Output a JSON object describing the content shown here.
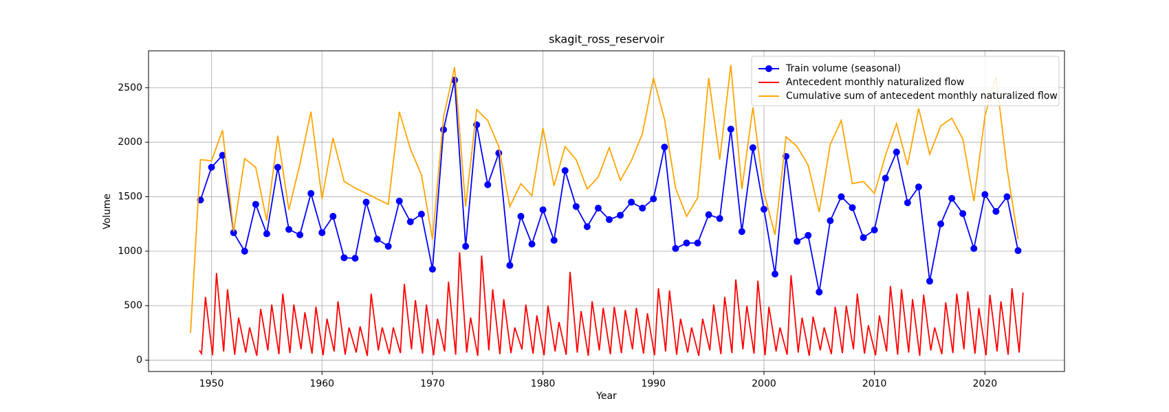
{
  "chart_data": {
    "type": "line",
    "title": "skagit_ross_reservoir",
    "xlabel": "Year",
    "ylabel": "Volume",
    "xlim": [
      1944.3,
      2027.2
    ],
    "ylim": [
      -104,
      2839
    ],
    "xticks": [
      1950,
      1960,
      1970,
      1980,
      1990,
      2000,
      2010,
      2020
    ],
    "yticks": [
      0,
      500,
      1000,
      1500,
      2000,
      2500
    ],
    "grid": true,
    "legend": "upper right",
    "series": [
      {
        "name": "Train volume (seasonal)",
        "color": "#0000ff",
        "marker": "o",
        "x": [
          1949,
          1950,
          1951,
          1952,
          1953,
          1954,
          1955,
          1956,
          1957,
          1958,
          1959,
          1960,
          1961,
          1962,
          1963,
          1964,
          1965,
          1966,
          1967,
          1968,
          1969,
          1970,
          1971,
          1972,
          1973,
          1974,
          1975,
          1976,
          1977,
          1978,
          1979,
          1980,
          1981,
          1982,
          1983,
          1984,
          1985,
          1986,
          1987,
          1988,
          1989,
          1990,
          1991,
          1992,
          1993,
          1994,
          1995,
          1996,
          1997,
          1998,
          1999,
          2000,
          2001,
          2002,
          2003,
          2004,
          2005,
          2006,
          2007,
          2008,
          2009,
          2010,
          2011,
          2012,
          2013,
          2014,
          2015,
          2016,
          2017,
          2018,
          2019,
          2020,
          2021,
          2022,
          2023
        ],
        "values": [
          1470,
          1770,
          1880,
          1170,
          1000,
          1430,
          1160,
          1770,
          1200,
          1150,
          1530,
          1170,
          1320,
          940,
          935,
          1450,
          1110,
          1045,
          1460,
          1270,
          1340,
          835,
          2115,
          2570,
          1045,
          2160,
          1610,
          1900,
          870,
          1320,
          1065,
          1380,
          1100,
          1740,
          1410,
          1225,
          1395,
          1290,
          1330,
          1450,
          1395,
          1480,
          1955,
          1025,
          1075,
          1075,
          1335,
          1300,
          2120,
          1180,
          1950,
          1385,
          790,
          1870,
          1090,
          1145,
          625,
          1280,
          1500,
          1400,
          1125,
          1195,
          1670,
          1910,
          1445,
          1590,
          725,
          1250,
          1485,
          1345,
          1025,
          1520,
          1365,
          1500,
          1005
        ]
      },
      {
        "name": "Antecedent monthly naturalized flow",
        "color": "#ff0000",
        "x": [
          1948.9,
          1949.1,
          1949.45,
          1950.1,
          1950.45,
          1951.1,
          1951.45,
          1952.1,
          1952.45,
          1953.1,
          1953.45,
          1954.1,
          1954.45,
          1955.1,
          1955.45,
          1956.1,
          1956.45,
          1957.1,
          1957.45,
          1958.1,
          1958.45,
          1959.1,
          1959.45,
          1960.1,
          1960.45,
          1961.1,
          1961.45,
          1962.1,
          1962.45,
          1963.1,
          1963.45,
          1964.1,
          1964.45,
          1965.1,
          1965.45,
          1966.1,
          1966.45,
          1967.1,
          1967.45,
          1968.1,
          1968.45,
          1969.1,
          1969.45,
          1970.1,
          1970.45,
          1971.1,
          1971.45,
          1972.1,
          1972.45,
          1973.1,
          1973.45,
          1974.1,
          1974.45,
          1975.1,
          1975.45,
          1976.1,
          1976.45,
          1977.1,
          1977.45,
          1978.1,
          1978.45,
          1979.1,
          1979.45,
          1980.1,
          1980.45,
          1981.1,
          1981.45,
          1982.1,
          1982.45,
          1983.1,
          1983.45,
          1984.1,
          1984.45,
          1985.1,
          1985.45,
          1986.1,
          1986.45,
          1987.1,
          1987.45,
          1988.1,
          1988.45,
          1989.1,
          1989.45,
          1990.1,
          1990.45,
          1991.1,
          1991.45,
          1992.1,
          1992.45,
          1993.1,
          1993.45,
          1994.1,
          1994.45,
          1995.1,
          1995.45,
          1996.1,
          1996.45,
          1997.1,
          1997.45,
          1998.1,
          1998.45,
          1999.1,
          1999.45,
          2000.1,
          2000.45,
          2001.1,
          2001.45,
          2002.1,
          2002.45,
          2003.1,
          2003.45,
          2004.1,
          2004.45,
          2005.1,
          2005.45,
          2006.1,
          2006.45,
          2007.1,
          2007.45,
          2008.1,
          2008.45,
          2009.1,
          2009.45,
          2010.1,
          2010.45,
          2011.1,
          2011.45,
          2012.1,
          2012.45,
          2013.1,
          2013.45,
          2014.1,
          2014.45,
          2015.1,
          2015.45,
          2016.1,
          2016.45,
          2017.1,
          2017.45,
          2018.1,
          2018.45,
          2019.1,
          2019.45,
          2020.1,
          2020.45,
          2021.1,
          2021.45,
          2022.1,
          2022.45,
          2023.1,
          2023.45
        ],
        "values": [
          90,
          60,
          580,
          45,
          800,
          80,
          650,
          50,
          390,
          70,
          300,
          40,
          470,
          90,
          510,
          55,
          610,
          65,
          510,
          100,
          440,
          60,
          490,
          45,
          380,
          80,
          540,
          50,
          300,
          70,
          310,
          40,
          610,
          90,
          300,
          55,
          300,
          65,
          700,
          100,
          550,
          60,
          510,
          45,
          380,
          80,
          720,
          50,
          990,
          70,
          390,
          40,
          960,
          90,
          650,
          55,
          560,
          65,
          300,
          100,
          510,
          60,
          410,
          45,
          500,
          80,
          350,
          50,
          810,
          70,
          450,
          40,
          540,
          90,
          480,
          55,
          490,
          65,
          460,
          100,
          480,
          60,
          430,
          45,
          660,
          80,
          640,
          50,
          380,
          70,
          300,
          40,
          380,
          90,
          510,
          55,
          580,
          65,
          740,
          100,
          500,
          60,
          730,
          45,
          490,
          80,
          300,
          50,
          780,
          70,
          390,
          40,
          400,
          90,
          300,
          55,
          490,
          65,
          500,
          100,
          610,
          60,
          320,
          45,
          410,
          80,
          680,
          50,
          650,
          70,
          560,
          40,
          600,
          90,
          300,
          55,
          530,
          65,
          610,
          100,
          630,
          60,
          480,
          45,
          600,
          80,
          540,
          50,
          660,
          70,
          620
        ]
      },
      {
        "name": "Cumulative sum of antecedent monthly naturalized flow",
        "color": "#ffa500",
        "x": [
          1948.1,
          1949,
          1950,
          1951,
          1952,
          1953,
          1954,
          1955,
          1956,
          1957,
          1958,
          1959,
          1960,
          1961,
          1962,
          1963,
          1964,
          1965,
          1966,
          1967,
          1968,
          1969,
          1970,
          1971,
          1972,
          1973,
          1974,
          1975,
          1976,
          1977,
          1978,
          1979,
          1980,
          1981,
          1982,
          1983,
          1984,
          1985,
          1986,
          1987,
          1988,
          1989,
          1990,
          1991,
          1992,
          1993,
          1994,
          1995,
          1996,
          1997,
          1998,
          1999,
          2000,
          2001,
          2002,
          2003,
          2004,
          2005,
          2006,
          2007,
          2008,
          2009,
          2010,
          2011,
          2012,
          2013,
          2014,
          2015,
          2016,
          2017,
          2018,
          2019,
          2020,
          2021,
          2022,
          2023
        ],
        "values": [
          250,
          1840,
          1830,
          2110,
          1180,
          1850,
          1770,
          1280,
          2060,
          1380,
          1800,
          2280,
          1480,
          2040,
          1640,
          1580,
          1530,
          1480,
          1430,
          2280,
          1940,
          1700,
          1110,
          2230,
          2690,
          1410,
          2300,
          2200,
          1960,
          1410,
          1620,
          1510,
          2130,
          1600,
          1960,
          1840,
          1570,
          1680,
          1950,
          1650,
          1830,
          2080,
          2590,
          2210,
          1580,
          1320,
          1490,
          2590,
          1840,
          2710,
          1570,
          2320,
          1540,
          1150,
          2050,
          1960,
          1790,
          1360,
          1980,
          2200,
          1620,
          1640,
          1530,
          1880,
          2170,
          1790,
          2310,
          1890,
          2150,
          2220,
          2030,
          1460,
          2240,
          2600,
          1760,
          1110
        ]
      }
    ]
  }
}
